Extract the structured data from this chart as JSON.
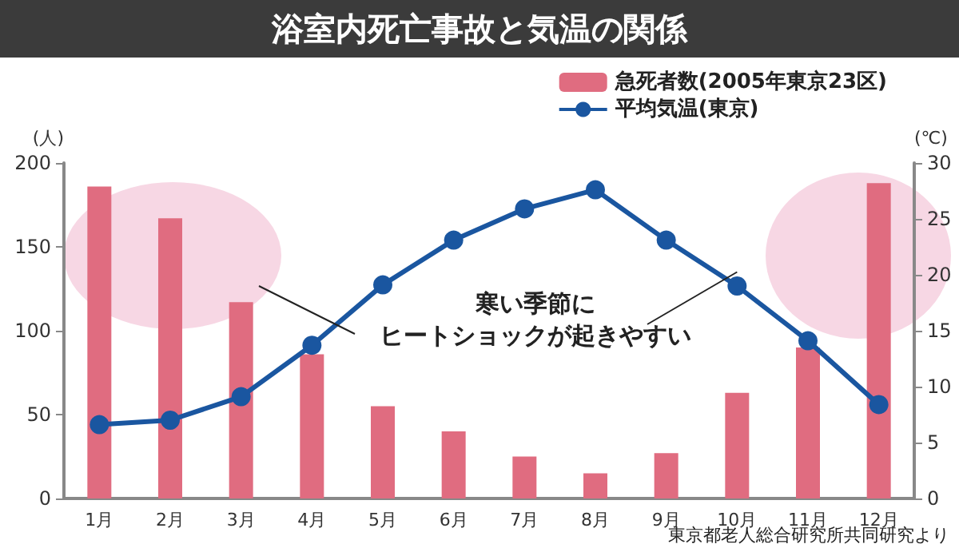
{
  "chart_data": {
    "type": "bar",
    "title": "浴室内死亡事故と気温の関係",
    "categories": [
      "1月",
      "2月",
      "3月",
      "4月",
      "5月",
      "6月",
      "7月",
      "8月",
      "9月",
      "10月",
      "11月",
      "12月"
    ],
    "series": [
      {
        "name": "急死者数(2005年東京23区)",
        "color": "#e06c80",
        "values": [
          186,
          167,
          117,
          86,
          55,
          40,
          25,
          15,
          27,
          63,
          90,
          188
        ]
      },
      {
        "name": "平均気温(東京)",
        "type": "line",
        "axis": "y2",
        "color": "#1a56a0",
        "values": [
          6.6,
          7.0,
          9.1,
          13.7,
          19.1,
          23.1,
          25.9,
          27.6,
          23.1,
          19.0,
          14.1,
          8.4
        ]
      }
    ],
    "ylabel": "(人)",
    "y2label": "(℃)",
    "ylim": [
      0,
      200
    ],
    "yticks": [
      0,
      50,
      100,
      150,
      200
    ],
    "y2lim": [
      0,
      30
    ],
    "y2ticks": [
      0,
      5,
      10,
      15,
      20,
      25,
      30
    ],
    "annotations": [
      "寒い季節に",
      {
        "text": "ヒートショックが起きやすい",
        "x": "10月",
        "y": 135
      },
      "東京都老人総合研究所共同研究より"
    ],
    "legend": "top right",
    "marker": "circle",
    "grid": false
  }
}
